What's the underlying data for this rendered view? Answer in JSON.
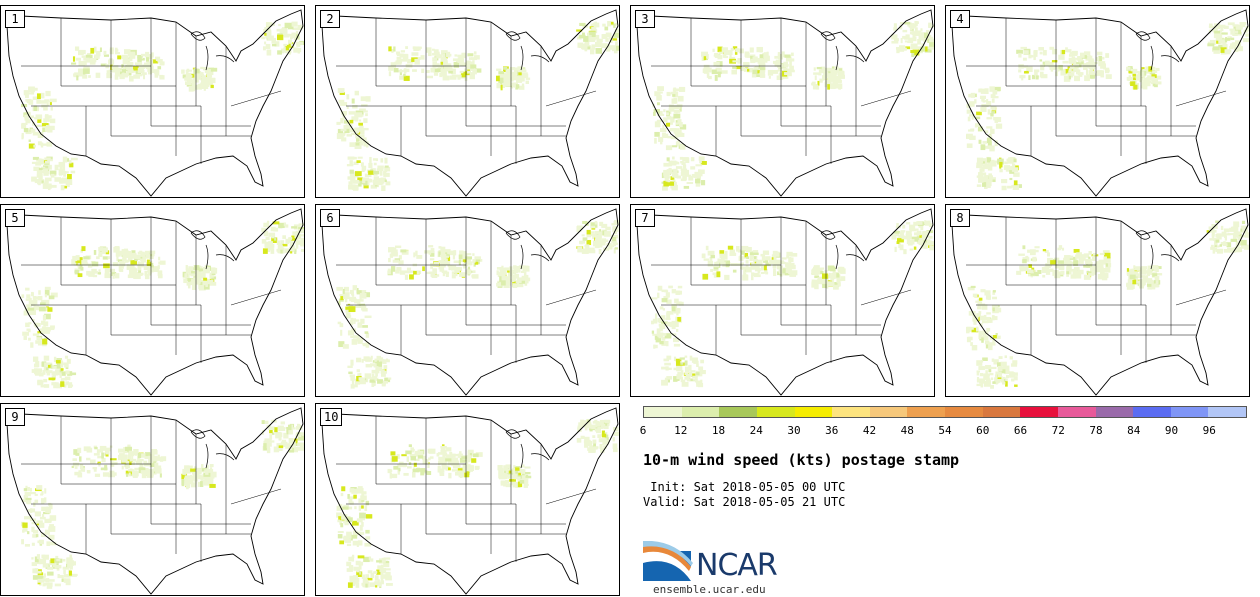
{
  "panels": [
    {
      "label": "1"
    },
    {
      "label": "2"
    },
    {
      "label": "3"
    },
    {
      "label": "4"
    },
    {
      "label": "5"
    },
    {
      "label": "6"
    },
    {
      "label": "7"
    },
    {
      "label": "8"
    },
    {
      "label": "9"
    },
    {
      "label": "10"
    }
  ],
  "colorbar": {
    "ticks": [
      "6",
      "12",
      "18",
      "24",
      "30",
      "36",
      "42",
      "48",
      "54",
      "60",
      "66",
      "72",
      "78",
      "84",
      "90",
      "96"
    ],
    "colors": [
      "#eef6d4",
      "#dceead",
      "#a8c85a",
      "#d7e81e",
      "#f5ec00",
      "#fde47f",
      "#f6c87b",
      "#eea04f",
      "#e68a40",
      "#d9783e",
      "#e8103c",
      "#e85a9a",
      "#9a6aaa",
      "#5b6cf2",
      "#7f95f6",
      "#b2c6f6"
    ]
  },
  "title": "10-m wind speed (kts) postage stamp",
  "init": " Init: Sat 2018-05-05 00 UTC",
  "valid": "Valid: Sat 2018-05-05 21 UTC",
  "logo": {
    "text": "NCAR",
    "url": "ensemble.ucar.edu"
  }
}
